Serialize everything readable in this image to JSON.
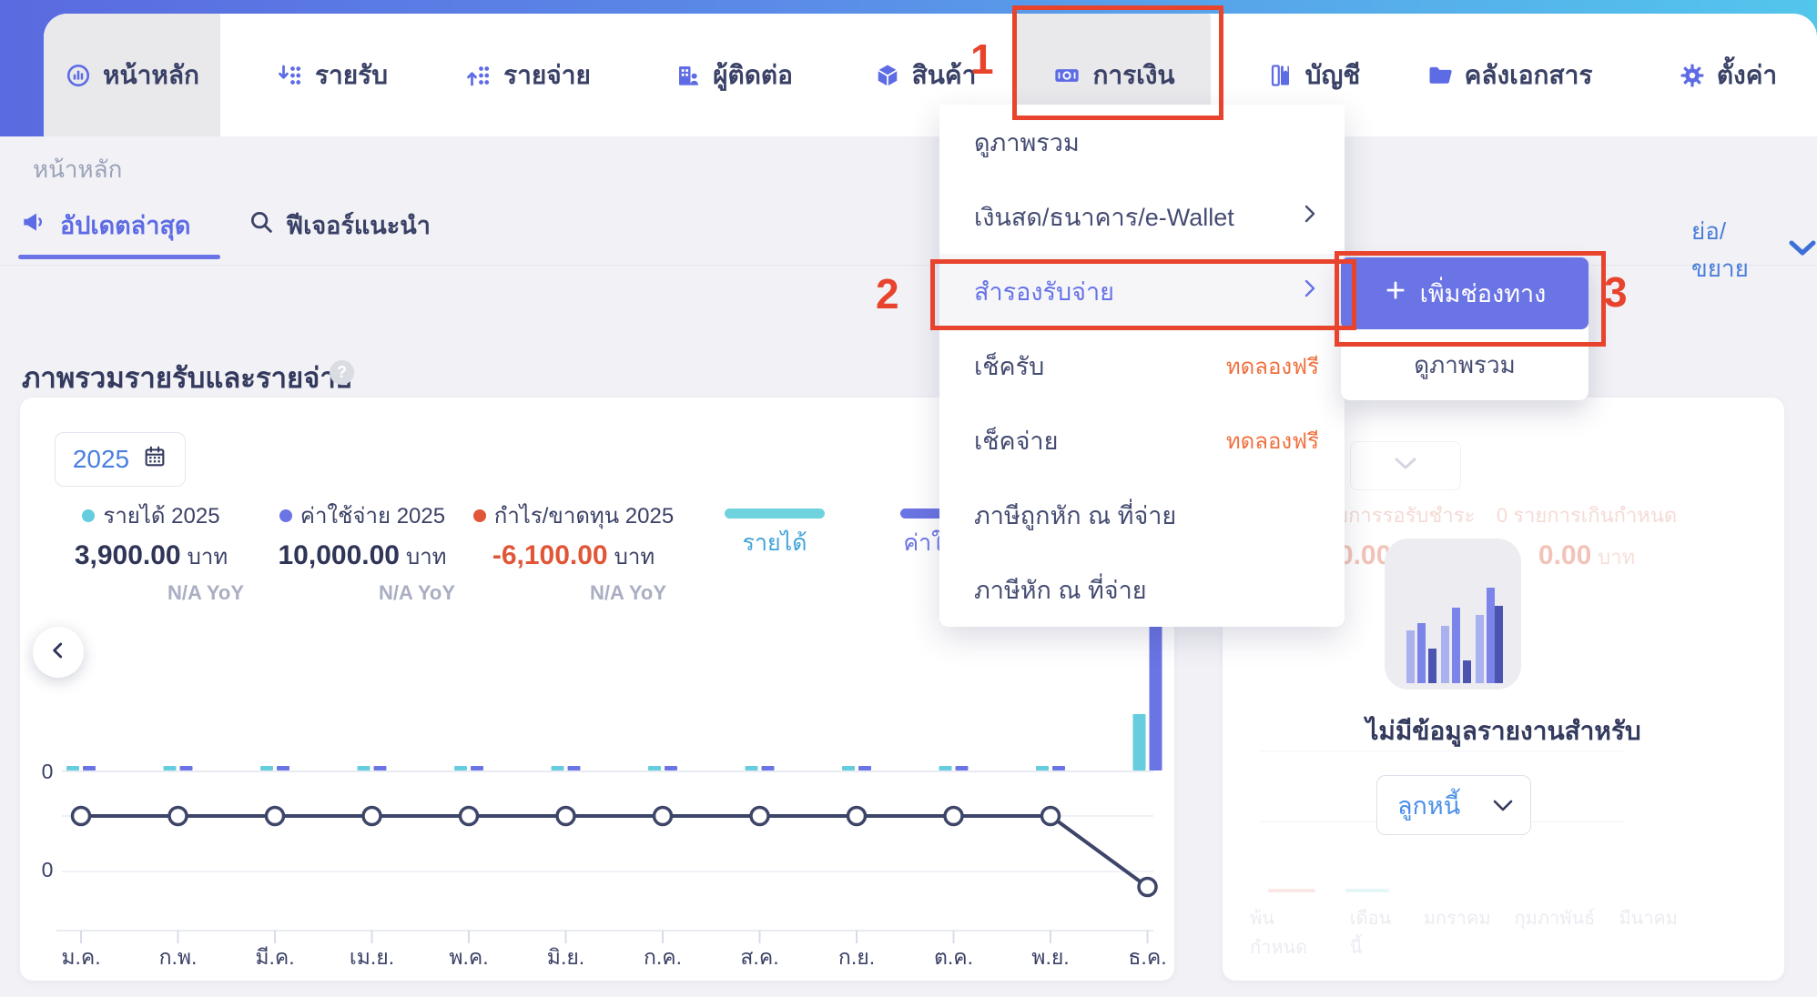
{
  "nav": {
    "items": [
      {
        "label": "หน้าหลัก"
      },
      {
        "label": "รายรับ"
      },
      {
        "label": "รายจ่าย"
      },
      {
        "label": "ผู้ติดต่อ"
      },
      {
        "label": "สินค้า"
      },
      {
        "label": "การเงิน"
      },
      {
        "label": "บัญชี"
      },
      {
        "label": "คลังเอกสาร"
      },
      {
        "label": "ตั้งค่า"
      }
    ]
  },
  "annotations": {
    "step1": "1",
    "step2": "2",
    "step3": "3",
    "highlight_color": "#e8432c"
  },
  "breadcrumb": "หน้าหลัก",
  "page_tabs": {
    "latest": "อัปเดตล่าสุด",
    "features": "ฟีเจอร์แนะนำ",
    "collapse_toggle": "ย่อ/ขยาย"
  },
  "section": {
    "title": "ภาพรวมรายรับและรายจ่าย",
    "help": "?"
  },
  "finance_menu": {
    "items": [
      {
        "label": "ดูภาพรวม"
      },
      {
        "label": "เงินสด/ธนาคาร/e-Wallet",
        "has_submenu": true
      },
      {
        "label": "สำรองรับจ่าย",
        "has_submenu": true,
        "highlighted": true
      },
      {
        "label": "เช็ครับ",
        "badge": "ทดลองฟรี"
      },
      {
        "label": "เช็คจ่าย",
        "badge": "ทดลองฟรี"
      },
      {
        "label": "ภาษีถูกหัก ณ ที่จ่าย"
      },
      {
        "label": "ภาษีหัก ณ ที่จ่าย"
      }
    ]
  },
  "submenu": {
    "add_channel": "เพิ่มช่องทาง",
    "overview": "ดูภาพรวม"
  },
  "chart_card": {
    "year": "2025",
    "totals": [
      {
        "label": "รายได้ 2025",
        "value": "3,900.00",
        "unit": "บาท",
        "yoy": "N/A YoY",
        "color": "#65cddd"
      },
      {
        "label": "ค่าใช้จ่าย 2025",
        "value": "10,000.00",
        "unit": "บาท",
        "yoy": "N/A YoY",
        "color": "#6b74e4"
      },
      {
        "label": "กำไร/ขาดทุน 2025",
        "value": "-6,100.00",
        "unit": "บาท",
        "yoy": "N/A YoY",
        "color": "#e05637"
      }
    ],
    "series_tabs": [
      "รายได้",
      "ค่าใช้จ่าย"
    ]
  },
  "chart_data": {
    "type": "bar+line",
    "title": "ภาพรวมรายรับและรายจ่าย",
    "year": "2025",
    "categories": [
      "ม.ค.",
      "ก.พ.",
      "มี.ค.",
      "เม.ย.",
      "พ.ค.",
      "มิ.ย.",
      "ก.ค.",
      "ส.ค.",
      "ก.ย.",
      "ต.ค.",
      "พ.ย.",
      "ธ.ค."
    ],
    "series": [
      {
        "name": "รายได้ 2025",
        "type": "bar",
        "color": "#65cddd",
        "values": [
          0,
          0,
          0,
          0,
          0,
          0,
          0,
          0,
          0,
          0,
          0,
          3900
        ]
      },
      {
        "name": "ค่าใช้จ่าย 2025",
        "type": "bar",
        "color": "#6b74e4",
        "values": [
          0,
          0,
          0,
          0,
          0,
          0,
          0,
          0,
          0,
          0,
          0,
          10000
        ]
      },
      {
        "name": "กำไร/ขาดทุน 2025",
        "type": "line",
        "color": "#3d4569",
        "values": [
          0,
          0,
          0,
          0,
          0,
          0,
          0,
          0,
          0,
          0,
          0,
          -6100
        ]
      }
    ],
    "y_axis_labels": [
      "0",
      "0"
    ],
    "grid": true,
    "legend_position": "top"
  },
  "right_panel": {
    "pending_label": "0 รายการรอรับชำระ",
    "pending_value": "0.00",
    "overdue_label": "0 รายการเกินกำหนด",
    "overdue_value": "0.00",
    "currency_unit": "บาท",
    "empty_title": "ไม่มีข้อมูลรายงานสำหรับ",
    "report_select_value": "ลูกหนี้",
    "bottom_tabs": [
      "พ้นกำหนด",
      "เดือนนี้",
      "มกราคม",
      "กุมภาพันธ์",
      "มีนาคม"
    ]
  },
  "icons": {
    "dashboard-icon": "◔",
    "income-icon": "↓⋮",
    "expense-icon": "↑⋮",
    "contacts-icon": "🏢",
    "products-icon": "◇",
    "finance-icon": "▭",
    "accounting-icon": "▯",
    "documents-icon": "🗀",
    "settings-icon": "⚙",
    "megaphone-icon": "📣",
    "search-icon": "🔍",
    "calendar-icon": "▦",
    "chevron-down-icon": "⌄",
    "chevron-right-icon": "›",
    "chevron-left-icon": "‹",
    "plus-icon": "+",
    "help-icon": "?"
  }
}
